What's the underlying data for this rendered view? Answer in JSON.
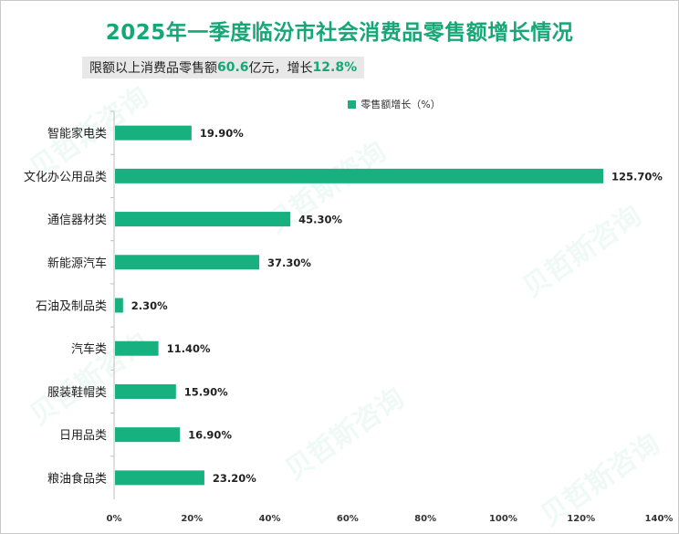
{
  "title": "2025年一季度临汾市社会消费品零售额增长情况",
  "subtitle": {
    "prefix": "限额以上消费品零售额",
    "value1": "60.6",
    "mid": "亿元，增长",
    "value2": "12.8%"
  },
  "watermark": "贝哲斯咨询",
  "colors": {
    "bar": "#17b07f",
    "title": "#17a777"
  },
  "chart_data": {
    "type": "bar",
    "orientation": "horizontal",
    "categories": [
      "智能家电类",
      "文化办公用品类",
      "通信器材类",
      "新能源汽车",
      "石油及制品类",
      "汽车类",
      "服装鞋帽类",
      "日用品类",
      "粮油食品类"
    ],
    "series": [
      {
        "name": "零售额增长（%）",
        "values": [
          19.9,
          125.7,
          45.3,
          37.3,
          2.3,
          11.4,
          15.9,
          16.9,
          23.2
        ]
      }
    ],
    "data_labels": [
      "19.90%",
      "125.70%",
      "45.30%",
      "37.30%",
      "2.30%",
      "11.40%",
      "15.90%",
      "16.90%",
      "23.20%"
    ],
    "xlim": [
      0,
      140
    ],
    "xticks": [
      0,
      20,
      40,
      60,
      80,
      100,
      120,
      140
    ],
    "xtick_labels": [
      "0%",
      "20%",
      "40%",
      "60%",
      "80%",
      "100%",
      "120%",
      "140%"
    ],
    "legend_position": "top",
    "grid": false
  }
}
